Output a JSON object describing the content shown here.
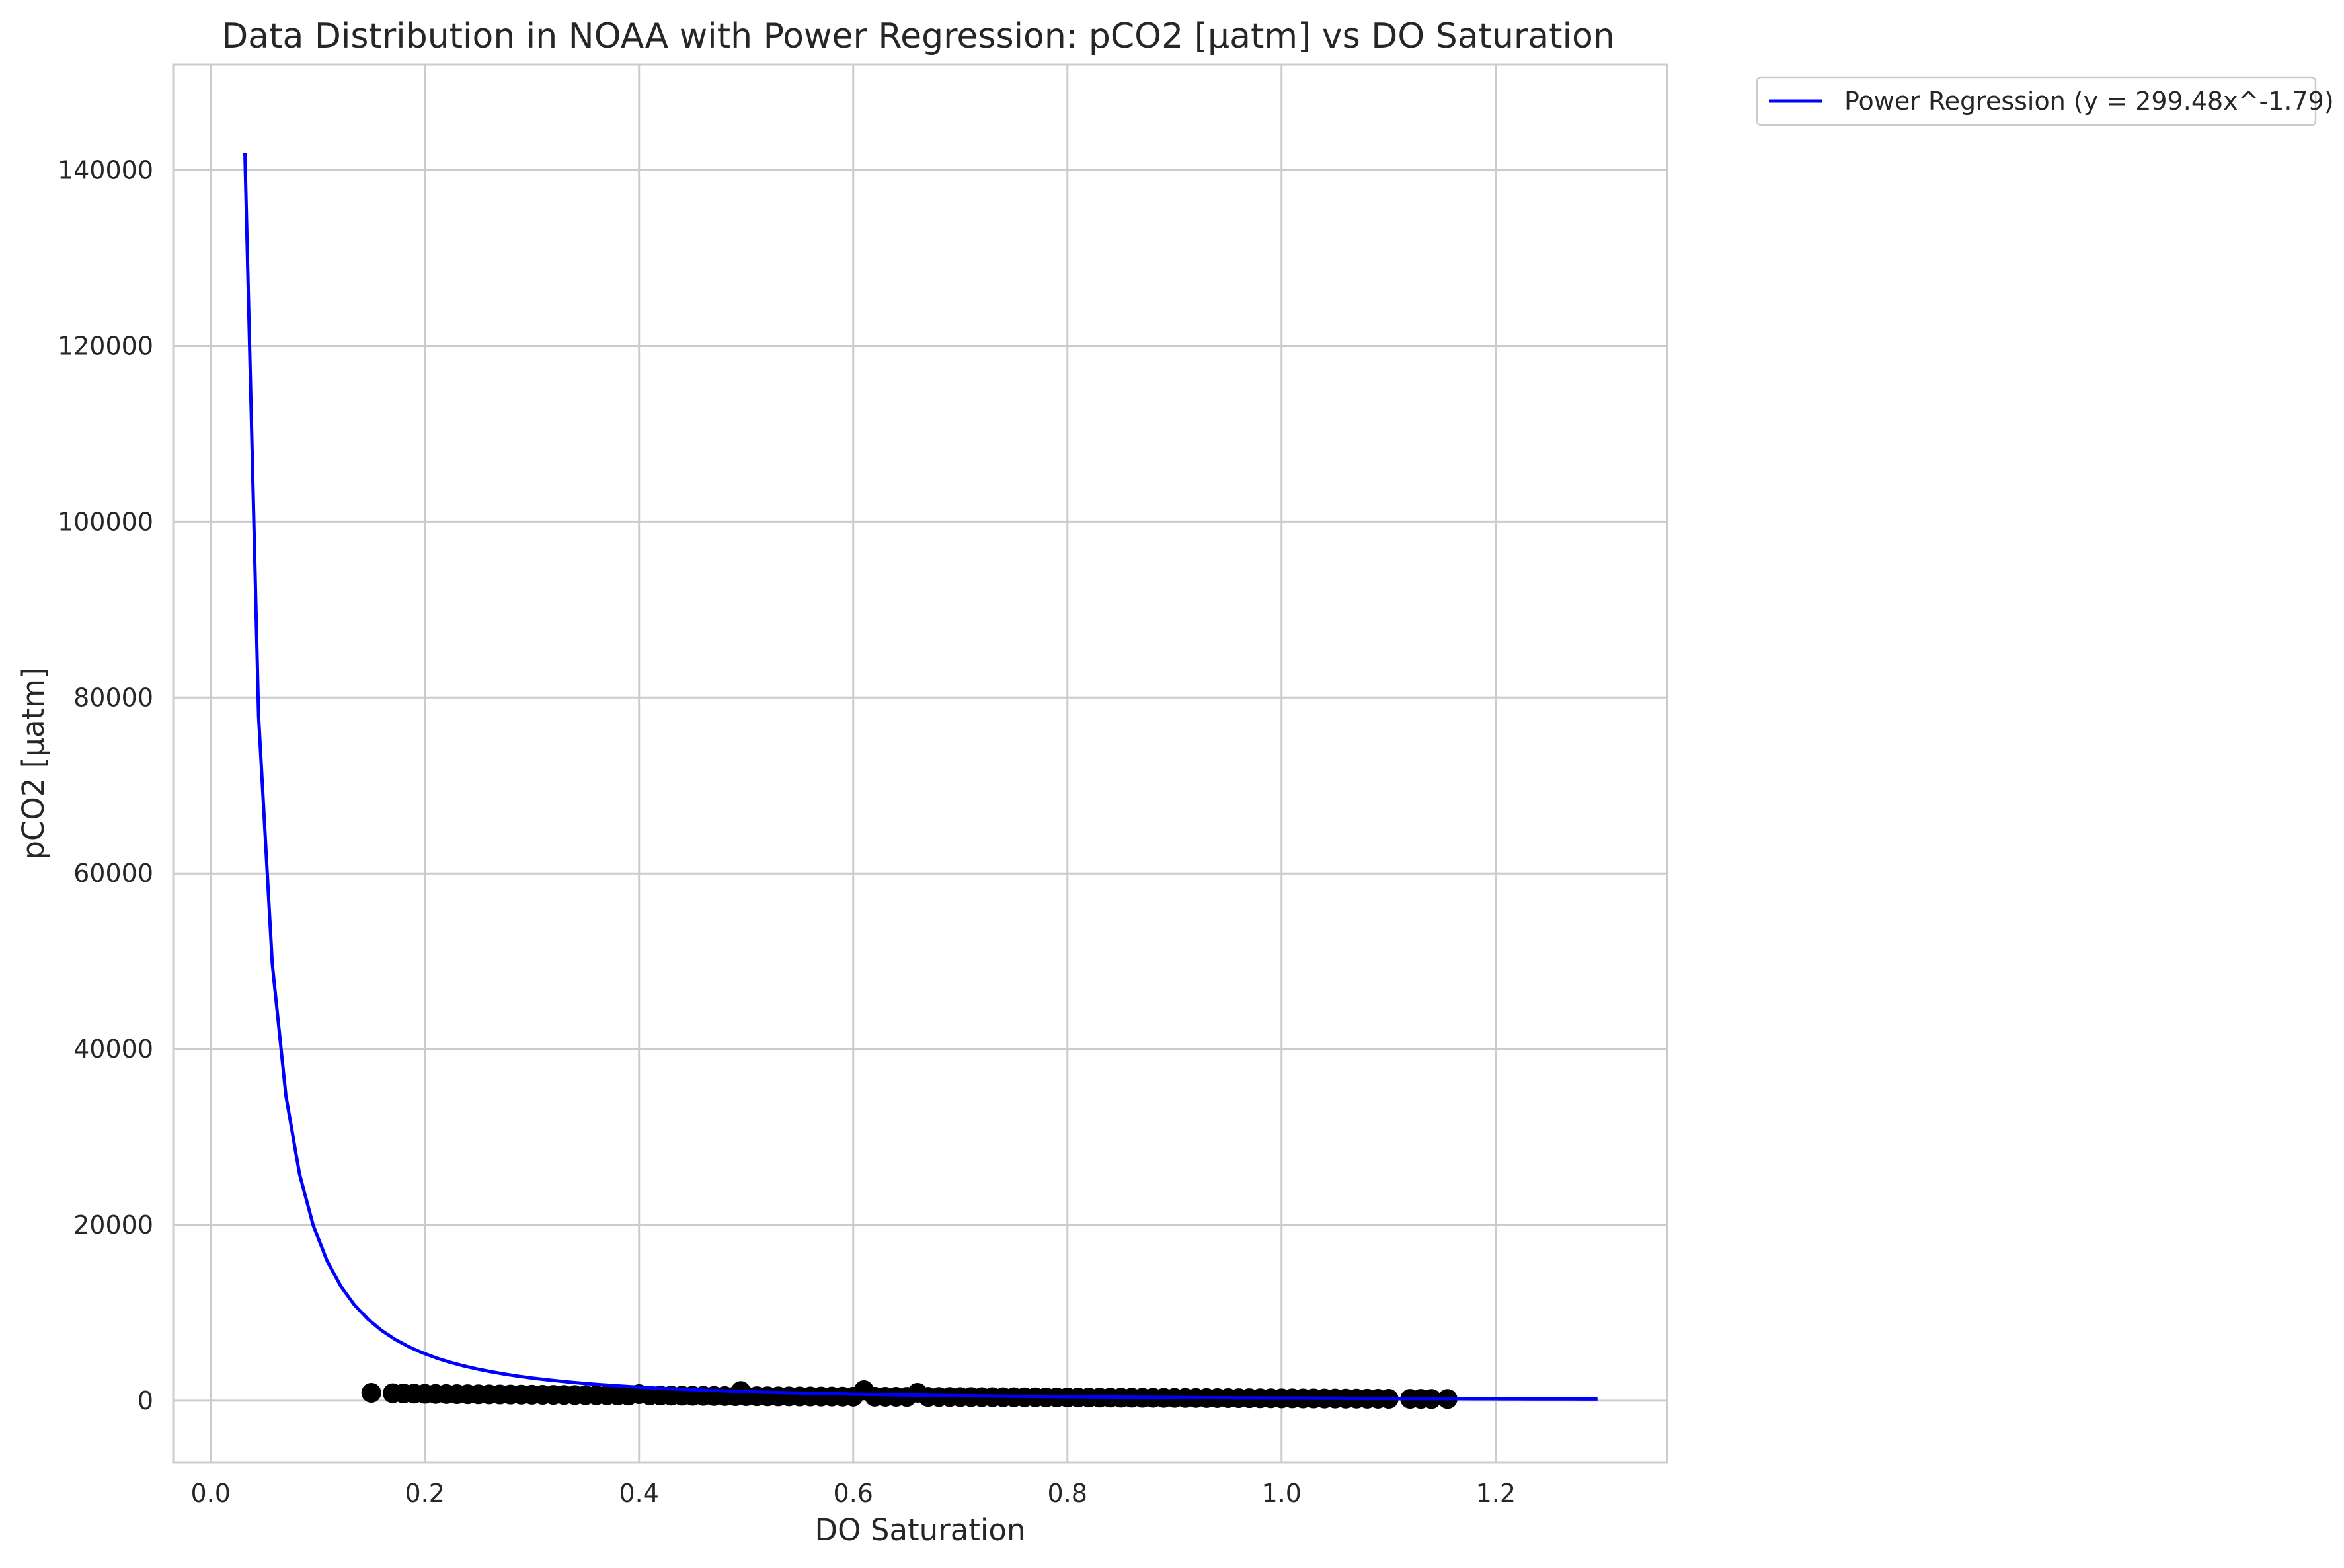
{
  "chart_data": {
    "type": "scatter",
    "title": "Data Distribution in NOAA with Power Regression: pCO2 [µatm] vs DO Saturation",
    "xlabel": "DO Saturation",
    "ylabel": "pCO2 [µatm]",
    "xlim": [
      -0.035,
      1.36
    ],
    "ylim": [
      -7000,
      152000
    ],
    "xticks": [
      0.0,
      0.2,
      0.4,
      0.6,
      0.8,
      1.0,
      1.2
    ],
    "xtick_labels": [
      "0.0",
      "0.2",
      "0.4",
      "0.6",
      "0.8",
      "1.0",
      "1.2"
    ],
    "yticks": [
      0,
      20000,
      40000,
      60000,
      80000,
      100000,
      120000,
      140000
    ],
    "ytick_labels": [
      "0",
      "20000",
      "40000",
      "60000",
      "80000",
      "100000",
      "120000",
      "140000"
    ],
    "grid": true,
    "legend_position": "outside-top-right",
    "series": [
      {
        "name": "Power Regression (y = 299.48x^-1.79)",
        "kind": "line",
        "color": "#0000ff",
        "formula": {
          "a": 299.48,
          "b": -1.79
        },
        "x_range": [
          0.032,
          1.295
        ]
      },
      {
        "kind": "scatter",
        "color": "#000000",
        "x": [
          0.15,
          0.17,
          0.18,
          0.19,
          0.2,
          0.21,
          0.22,
          0.23,
          0.24,
          0.25,
          0.26,
          0.27,
          0.28,
          0.29,
          0.3,
          0.31,
          0.32,
          0.33,
          0.34,
          0.35,
          0.36,
          0.37,
          0.38,
          0.39,
          0.4,
          0.41,
          0.42,
          0.43,
          0.44,
          0.45,
          0.46,
          0.47,
          0.48,
          0.49,
          0.495,
          0.5,
          0.51,
          0.52,
          0.53,
          0.54,
          0.55,
          0.56,
          0.57,
          0.58,
          0.59,
          0.6,
          0.61,
          0.62,
          0.63,
          0.64,
          0.65,
          0.66,
          0.67,
          0.68,
          0.69,
          0.7,
          0.71,
          0.72,
          0.73,
          0.74,
          0.75,
          0.76,
          0.77,
          0.78,
          0.79,
          0.8,
          0.81,
          0.82,
          0.83,
          0.84,
          0.85,
          0.86,
          0.87,
          0.88,
          0.89,
          0.9,
          0.91,
          0.92,
          0.93,
          0.94,
          0.95,
          0.96,
          0.97,
          0.98,
          0.99,
          1.0,
          1.01,
          1.02,
          1.03,
          1.04,
          1.05,
          1.06,
          1.07,
          1.08,
          1.09,
          1.1,
          1.12,
          1.13,
          1.14,
          1.155
        ],
        "y": [
          900,
          850,
          820,
          800,
          780,
          770,
          760,
          750,
          740,
          730,
          720,
          710,
          700,
          690,
          680,
          670,
          660,
          650,
          640,
          630,
          620,
          610,
          600,
          590,
          750,
          600,
          590,
          580,
          570,
          560,
          550,
          540,
          530,
          520,
          1100,
          520,
          510,
          500,
          495,
          490,
          485,
          480,
          475,
          470,
          465,
          460,
          1200,
          455,
          450,
          445,
          440,
          900,
          435,
          430,
          425,
          420,
          415,
          410,
          405,
          400,
          395,
          390,
          385,
          380,
          375,
          370,
          365,
          360,
          355,
          350,
          345,
          340,
          335,
          330,
          325,
          320,
          315,
          310,
          305,
          300,
          295,
          290,
          285,
          280,
          275,
          270,
          265,
          260,
          255,
          250,
          245,
          240,
          235,
          230,
          225,
          220,
          215,
          210,
          205,
          200
        ]
      }
    ]
  }
}
